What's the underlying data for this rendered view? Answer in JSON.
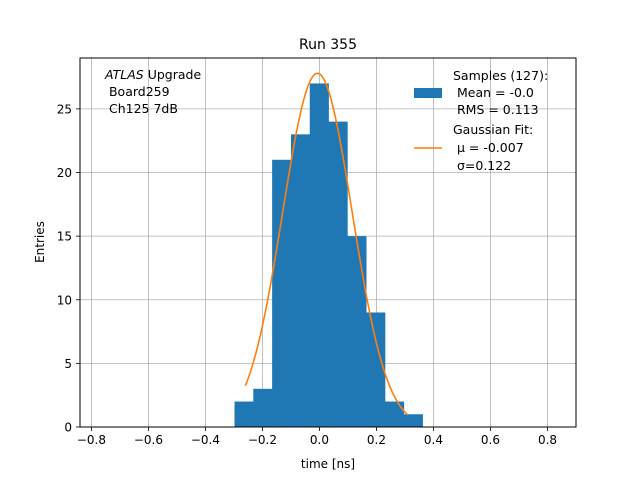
{
  "chart_data": {
    "type": "bar",
    "title": "Run 355",
    "xlabel": "time [ns]",
    "ylabel": "Entries",
    "xlim": [
      -0.84,
      0.9
    ],
    "ylim": [
      0,
      29
    ],
    "grid": true,
    "bar_color": "#1f77b4",
    "fit_color": "#ff7f0e",
    "xticks": [
      -0.8,
      -0.6,
      -0.4,
      -0.2,
      0.0,
      0.2,
      0.4,
      0.6,
      0.8
    ],
    "xtick_labels": [
      "−0.8",
      "−0.6",
      "−0.4",
      "−0.2",
      "0.0",
      "0.2",
      "0.4",
      "0.6",
      "0.8"
    ],
    "yticks": [
      0,
      5,
      10,
      15,
      20,
      25
    ],
    "ytick_labels": [
      "0",
      "5",
      "10",
      "15",
      "20",
      "25"
    ],
    "histogram": {
      "bin_edges": [
        -0.298,
        -0.232,
        -0.166,
        -0.1,
        -0.034,
        0.032,
        0.098,
        0.164,
        0.23,
        0.296,
        0.362
      ],
      "counts": [
        2,
        3,
        21,
        23,
        27,
        24,
        15,
        9,
        2,
        1
      ]
    },
    "fit": {
      "mu": -0.007,
      "sigma": 0.122,
      "amplitude": 27.8,
      "x_range": [
        -0.26,
        0.31
      ]
    },
    "annotation": {
      "italic_part": "ATLAS",
      "line1_rest": " Upgrade",
      "line2": " Board259",
      "line3": " Ch125 7dB"
    },
    "legend": {
      "placement": "top-right",
      "samples": [
        "Samples (127):",
        " Mean = -0.0",
        " RMS = 0.113"
      ],
      "fit_title": "Gaussian Fit:",
      "fit_mu_label": " μ = -0.007",
      "fit_sigma_label": " σ=0.122"
    }
  }
}
